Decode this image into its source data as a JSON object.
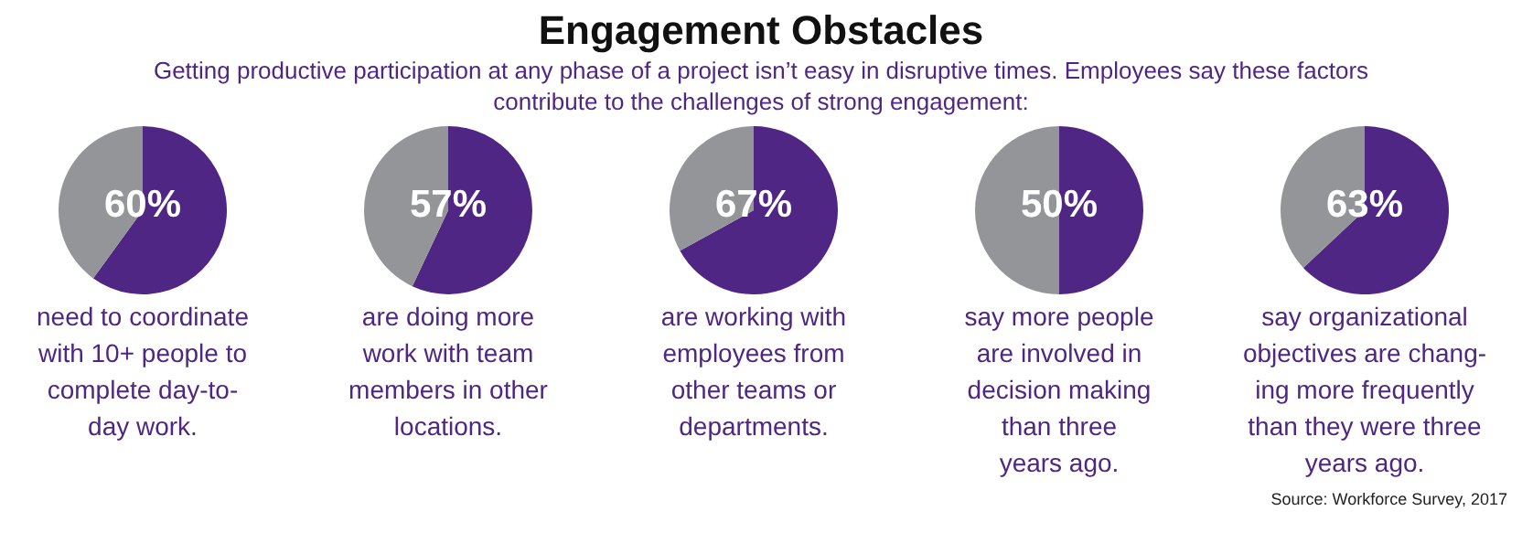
{
  "chart_data": [
    {
      "type": "other",
      "title": "Engagement Obstacles",
      "subtitle": "Getting productive participation at any phase of a project isn’t easy in disruptive times. Employees say these factors\ncontribute to the challenges of strong engagement:",
      "annotations": [
        "Source: Workforce Survey, 2017"
      ]
    },
    {
      "type": "pie",
      "categories": [
        null,
        null
      ],
      "values": [
        60,
        40
      ],
      "colors": [
        "#4f2683",
        "#939598"
      ],
      "value_labels": [
        "60%",
        null
      ],
      "annotations": [
        "need to coordinate\nwith 10+ people to\ncomplete day-to-\nday work."
      ]
    },
    {
      "type": "pie",
      "categories": [
        null,
        null
      ],
      "values": [
        57,
        43
      ],
      "colors": [
        "#4f2683",
        "#939598"
      ],
      "value_labels": [
        "57%",
        null
      ],
      "annotations": [
        "are doing more\nwork with team\nmembers in other\nlocations."
      ]
    },
    {
      "type": "pie",
      "categories": [
        null,
        null
      ],
      "values": [
        67,
        33
      ],
      "colors": [
        "#4f2683",
        "#939598"
      ],
      "value_labels": [
        "67%",
        null
      ],
      "annotations": [
        "are working with\nemployees from\nother teams or\ndepartments."
      ]
    },
    {
      "type": "pie",
      "categories": [
        null,
        null
      ],
      "values": [
        50,
        50
      ],
      "colors": [
        "#4f2683",
        "#939598"
      ],
      "value_labels": [
        "50%",
        null
      ],
      "annotations": [
        "say more people\nare involved in\ndecision making\nthan three\nyears ago."
      ]
    },
    {
      "type": "pie",
      "categories": [
        null,
        null
      ],
      "values": [
        63,
        37
      ],
      "colors": [
        "#4f2683",
        "#939598"
      ],
      "value_labels": [
        "63%",
        null
      ],
      "annotations": [
        "say organizational\nobjectives are chang-\ning more frequently\nthan they were three\nyears ago."
      ]
    }
  ]
}
